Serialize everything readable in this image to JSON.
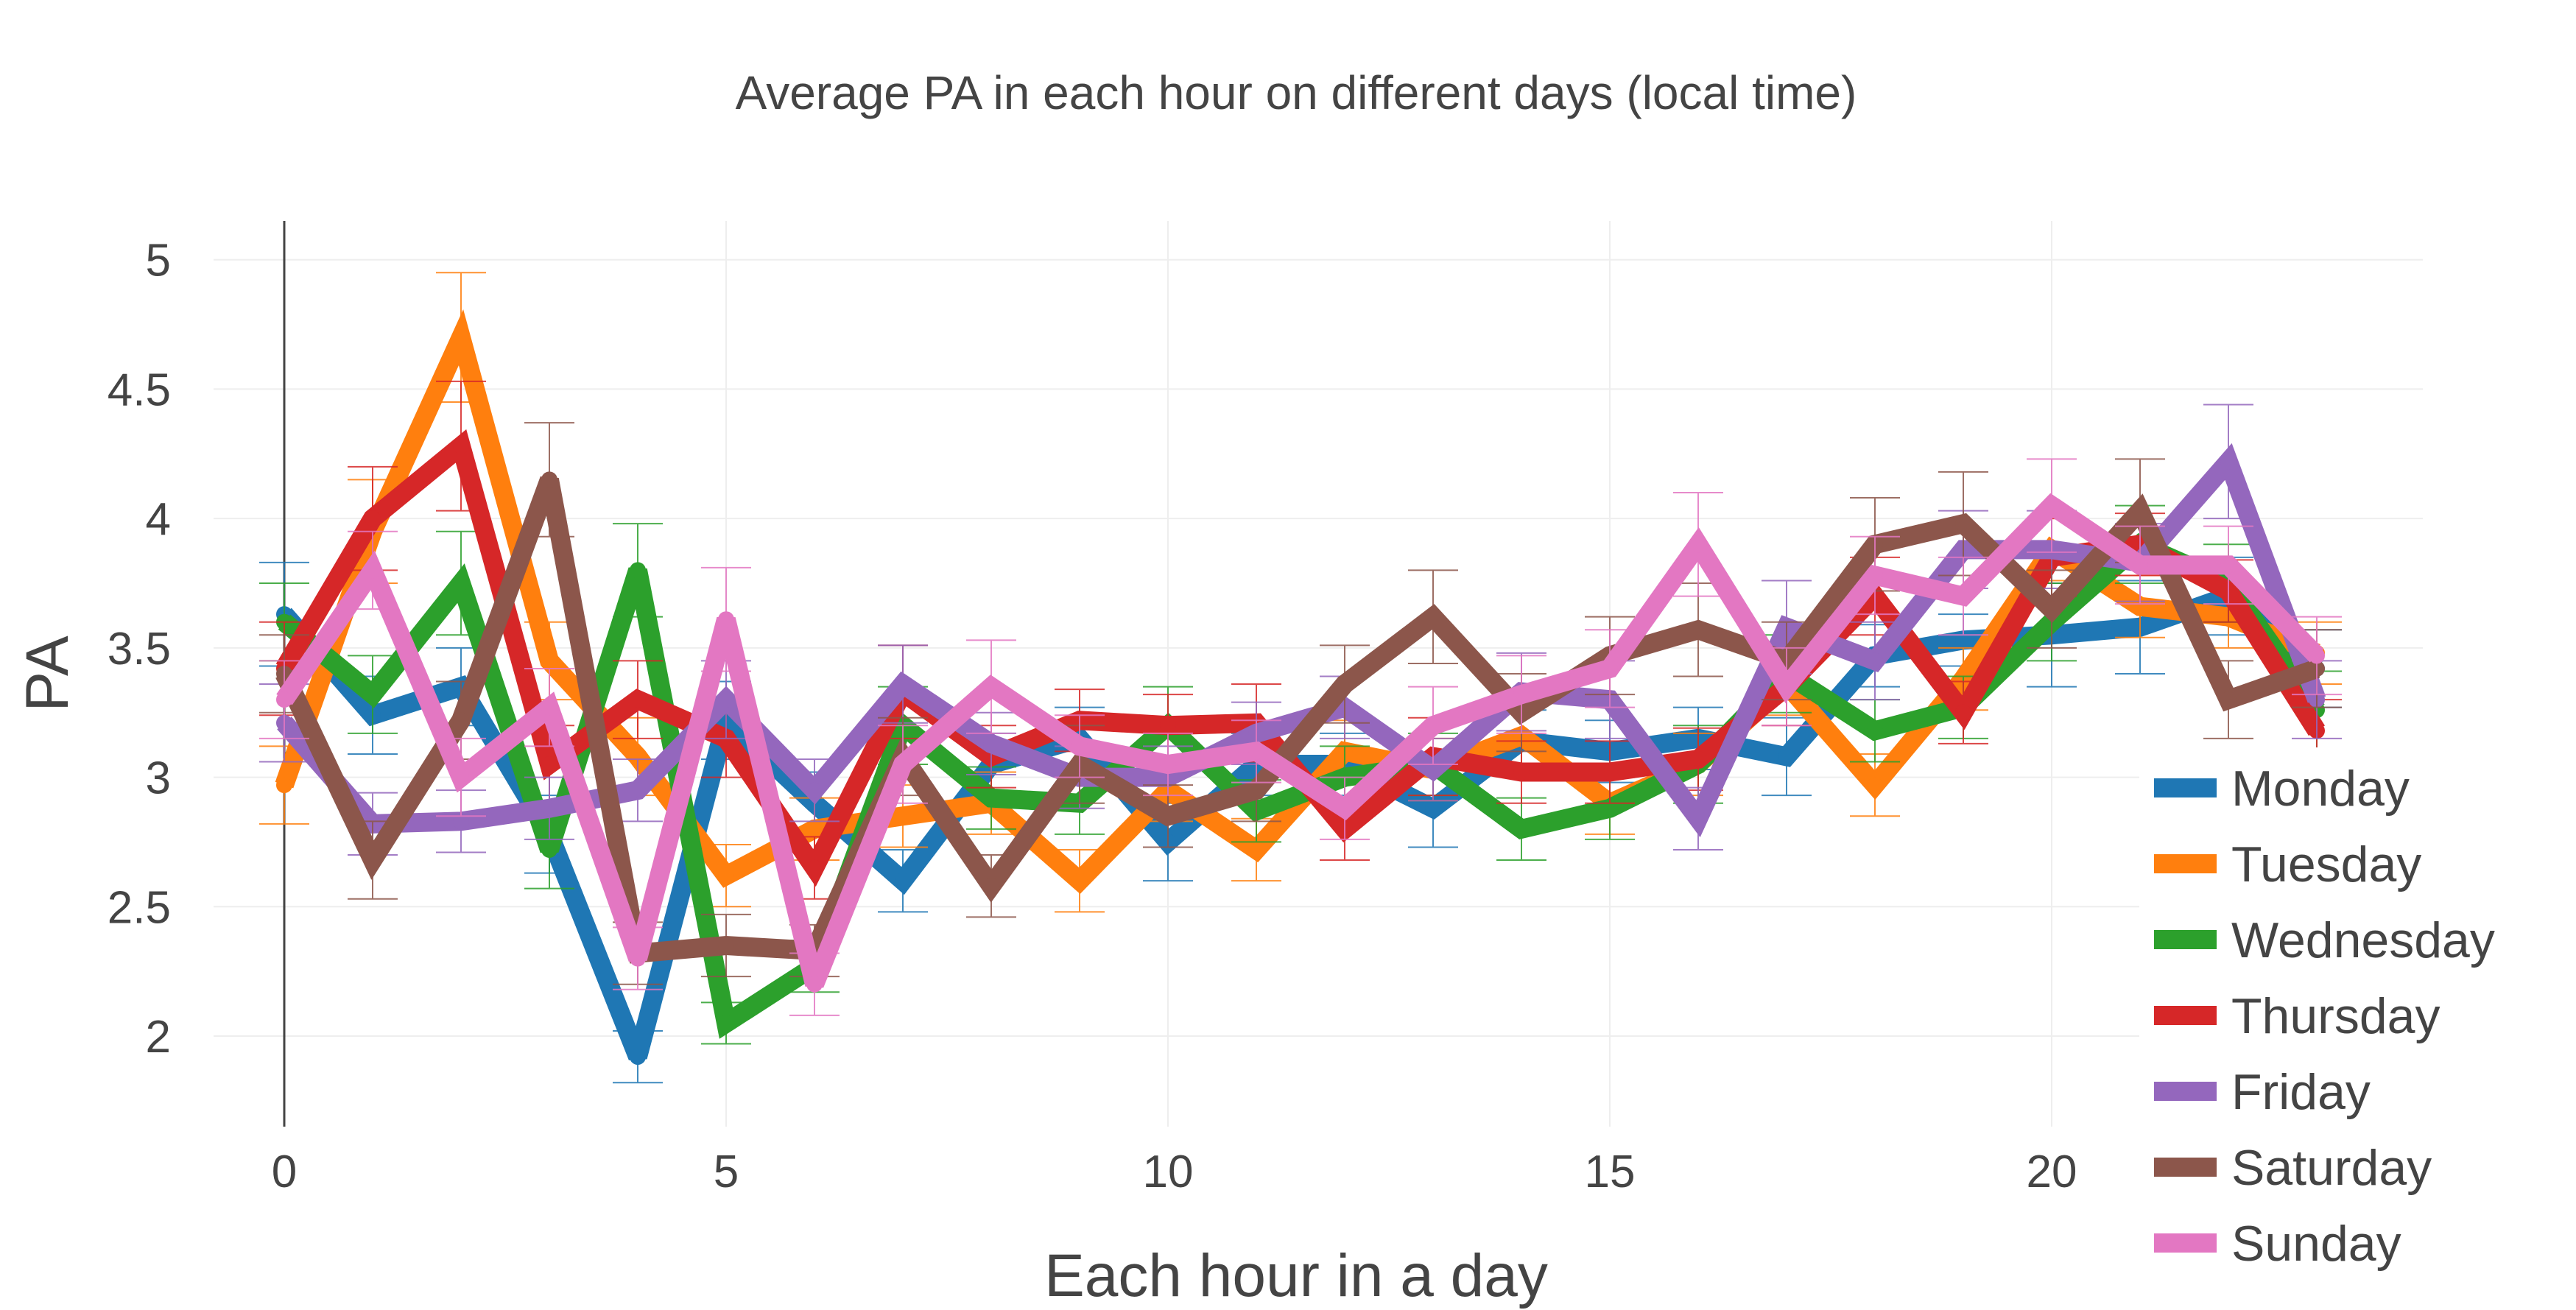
{
  "chart_data": {
    "type": "line",
    "title": "Average PA in each hour on different days (local time)",
    "xlabel": "Each hour in a day",
    "ylabel": "PA",
    "xlim": [
      -0.8,
      24.2
    ],
    "ylim": [
      1.65,
      5.15
    ],
    "xticks": [
      0,
      5,
      10,
      15,
      20
    ],
    "yticks": [
      2,
      2.5,
      3,
      3.5,
      4,
      4.5,
      5
    ],
    "x": [
      0,
      1,
      2,
      3,
      4,
      5,
      6,
      7,
      8,
      9,
      10,
      11,
      12,
      13,
      14,
      15,
      16,
      17,
      18,
      19,
      20,
      21,
      22,
      23
    ],
    "series": [
      {
        "name": "Monday",
        "color": "#1f77b4",
        "values": [
          3.63,
          3.24,
          3.35,
          2.78,
          1.92,
          3.22,
          2.9,
          2.6,
          3.05,
          3.15,
          2.75,
          3.05,
          3.05,
          2.88,
          3.14,
          3.1,
          3.15,
          3.08,
          3.47,
          3.53,
          3.55,
          3.58,
          3.7,
          3.42
        ],
        "errors": [
          0.2,
          0.15,
          0.15,
          0.15,
          0.1,
          0.15,
          0.12,
          0.12,
          0.12,
          0.12,
          0.15,
          0.12,
          0.12,
          0.15,
          0.12,
          0.12,
          0.12,
          0.15,
          0.12,
          0.1,
          0.2,
          0.18,
          0.15,
          0.15
        ]
      },
      {
        "name": "Tuesday",
        "color": "#ff7f0e",
        "values": [
          2.97,
          3.95,
          4.7,
          3.45,
          3.08,
          2.62,
          2.8,
          2.85,
          2.9,
          2.6,
          2.95,
          2.72,
          3.1,
          3.03,
          3.16,
          2.9,
          3.05,
          3.36,
          2.97,
          3.38,
          3.88,
          3.66,
          3.62,
          3.48
        ],
        "errors": [
          0.15,
          0.2,
          0.25,
          0.15,
          0.15,
          0.12,
          0.12,
          0.12,
          0.12,
          0.12,
          0.12,
          0.12,
          0.12,
          0.12,
          0.12,
          0.12,
          0.12,
          0.12,
          0.12,
          0.12,
          0.12,
          0.12,
          0.12,
          0.12
        ]
      },
      {
        "name": "Wednesday",
        "color": "#2ca02c",
        "values": [
          3.6,
          3.32,
          3.75,
          2.72,
          3.8,
          2.05,
          2.27,
          3.2,
          2.92,
          2.9,
          3.2,
          2.87,
          3.0,
          3.05,
          2.8,
          2.88,
          3.05,
          3.4,
          3.18,
          3.27,
          3.6,
          3.9,
          3.75,
          3.26
        ],
        "errors": [
          0.15,
          0.15,
          0.2,
          0.15,
          0.18,
          0.08,
          0.1,
          0.15,
          0.12,
          0.12,
          0.15,
          0.12,
          0.12,
          0.12,
          0.12,
          0.12,
          0.15,
          0.15,
          0.12,
          0.12,
          0.15,
          0.15,
          0.15,
          0.15
        ]
      },
      {
        "name": "Thursday",
        "color": "#d62728",
        "values": [
          3.42,
          4.0,
          4.28,
          3.05,
          3.3,
          3.15,
          2.65,
          3.33,
          3.08,
          3.22,
          3.2,
          3.21,
          2.8,
          3.08,
          3.02,
          3.02,
          3.07,
          3.35,
          3.7,
          3.25,
          3.85,
          3.9,
          3.72,
          3.18
        ],
        "errors": [
          0.18,
          0.2,
          0.25,
          0.15,
          0.15,
          0.15,
          0.12,
          0.18,
          0.12,
          0.12,
          0.12,
          0.15,
          0.12,
          0.15,
          0.12,
          0.12,
          0.12,
          0.15,
          0.15,
          0.12,
          0.15,
          0.12,
          0.12,
          0.12
        ]
      },
      {
        "name": "Friday",
        "color": "#9467bd",
        "values": [
          3.21,
          2.82,
          2.83,
          2.88,
          2.95,
          3.3,
          2.95,
          3.36,
          3.13,
          3.0,
          3.0,
          3.17,
          3.27,
          3.03,
          3.33,
          3.3,
          2.84,
          3.58,
          3.45,
          3.88,
          3.88,
          3.83,
          4.22,
          3.3
        ],
        "errors": [
          0.15,
          0.12,
          0.12,
          0.12,
          0.12,
          0.15,
          0.12,
          0.15,
          0.12,
          0.12,
          0.12,
          0.12,
          0.12,
          0.12,
          0.15,
          0.15,
          0.12,
          0.18,
          0.15,
          0.15,
          0.15,
          0.15,
          0.22,
          0.15
        ]
      },
      {
        "name": "Saturday",
        "color": "#8c564b",
        "values": [
          3.4,
          2.68,
          3.22,
          4.15,
          2.32,
          2.35,
          2.33,
          3.08,
          2.58,
          3.05,
          2.85,
          2.95,
          3.36,
          3.62,
          3.25,
          3.47,
          3.57,
          3.45,
          3.9,
          3.98,
          3.65,
          4.03,
          3.3,
          3.42
        ],
        "errors": [
          0.15,
          0.15,
          0.15,
          0.22,
          0.12,
          0.12,
          0.1,
          0.15,
          0.12,
          0.15,
          0.12,
          0.12,
          0.15,
          0.18,
          0.15,
          0.15,
          0.18,
          0.15,
          0.18,
          0.2,
          0.15,
          0.2,
          0.15,
          0.15
        ]
      },
      {
        "name": "Sunday",
        "color": "#e377c2",
        "values": [
          3.3,
          3.8,
          3.0,
          3.27,
          2.3,
          3.61,
          2.2,
          3.05,
          3.35,
          3.12,
          3.05,
          3.1,
          2.88,
          3.2,
          3.32,
          3.42,
          3.9,
          3.35,
          3.78,
          3.7,
          4.05,
          3.82,
          3.82,
          3.47
        ],
        "errors": [
          0.15,
          0.15,
          0.15,
          0.15,
          0.12,
          0.2,
          0.12,
          0.15,
          0.18,
          0.12,
          0.12,
          0.12,
          0.12,
          0.15,
          0.15,
          0.15,
          0.2,
          0.15,
          0.15,
          0.15,
          0.18,
          0.15,
          0.15,
          0.15
        ]
      }
    ],
    "legend_position": "right"
  }
}
